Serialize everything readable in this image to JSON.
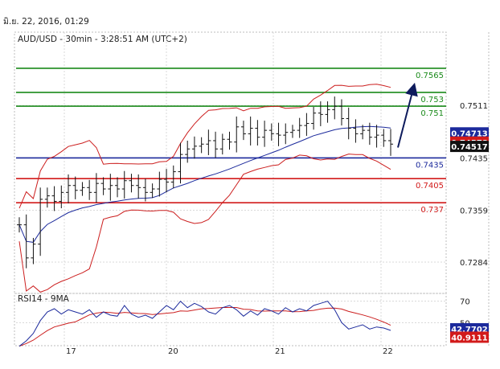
{
  "timestamp": "มิ.ย. 22, 2016, 01:29",
  "chart_data": {
    "type": "candlestick",
    "title": "AUD/USD - 30min - 3:28:51 AM (UTC+2)",
    "price_axis": {
      "range": [
        0.7242,
        0.7615
      ],
      "ticks": [
        "0.7511",
        "0.7435",
        "0.7359",
        "0.7284"
      ]
    },
    "x_axis": {
      "ticks": [
        "17",
        "20",
        "21",
        "22"
      ]
    },
    "levels": [
      {
        "label": "0.7565",
        "value": 0.7565,
        "color": "#1a8a1a"
      },
      {
        "label": "0.753",
        "value": 0.753,
        "color": "#1a8a1a"
      },
      {
        "label": "0.751",
        "value": 0.751,
        "color": "#1a8a1a"
      },
      {
        "label": "0.7435",
        "value": 0.7435,
        "color": "#1c2a9c"
      },
      {
        "label": "0.7405",
        "value": 0.7405,
        "color": "#d21a1a"
      },
      {
        "label": "0.737",
        "value": 0.737,
        "color": "#d21a1a"
      }
    ],
    "price_tags": [
      {
        "label": "0.74713",
        "value": 0.74713,
        "color": "#1c2a9c"
      },
      {
        "label": "0.74578",
        "value": 0.74578,
        "color": "#d21a1a"
      },
      {
        "label": "0.74517",
        "value": 0.74517,
        "color": "#111111"
      }
    ],
    "price_series": [
      0.7338,
      0.729,
      0.731,
      0.7375,
      0.738,
      0.7372,
      0.7385,
      0.7395,
      0.7388,
      0.7392,
      0.7385,
      0.7398,
      0.739,
      0.7395,
      0.739,
      0.7402,
      0.7395,
      0.7392,
      0.7385,
      0.739,
      0.7404,
      0.74,
      0.7415,
      0.744,
      0.7448,
      0.7452,
      0.7455,
      0.746,
      0.7448,
      0.7462,
      0.7458,
      0.748,
      0.747,
      0.7478,
      0.7465,
      0.7475,
      0.747,
      0.7468,
      0.7472,
      0.7475,
      0.7482,
      0.7485,
      0.75,
      0.7498,
      0.7505,
      0.751,
      0.7492,
      0.7478,
      0.747,
      0.7475,
      0.7465,
      0.7468,
      0.746,
      0.7455
    ],
    "indicator_lines": [
      "upper_band",
      "lower_band",
      "moving_average"
    ],
    "projection_arrow": {
      "from": 0.745,
      "to": 0.7535
    },
    "rsi_panel": {
      "title": "RSI14 - 9MA",
      "ticks": [
        "70",
        "50"
      ],
      "rsi_tag": {
        "label": "42.7702",
        "value": 42.7702,
        "color": "#1c2a9c"
      },
      "ma_tag": {
        "label": "40.9111",
        "value": 40.9111,
        "color": "#d21a1a"
      },
      "rsi_series": [
        28,
        33,
        40,
        52,
        60,
        63,
        58,
        62,
        60,
        58,
        62,
        55,
        60,
        57,
        56,
        66,
        58,
        55,
        57,
        54,
        60,
        66,
        62,
        70,
        64,
        68,
        65,
        60,
        58,
        64,
        66,
        62,
        56,
        61,
        57,
        63,
        61,
        58,
        64,
        60,
        63,
        61,
        66,
        68,
        70,
        62,
        50,
        44,
        46,
        48,
        44,
        46,
        45,
        42.77
      ]
    }
  }
}
